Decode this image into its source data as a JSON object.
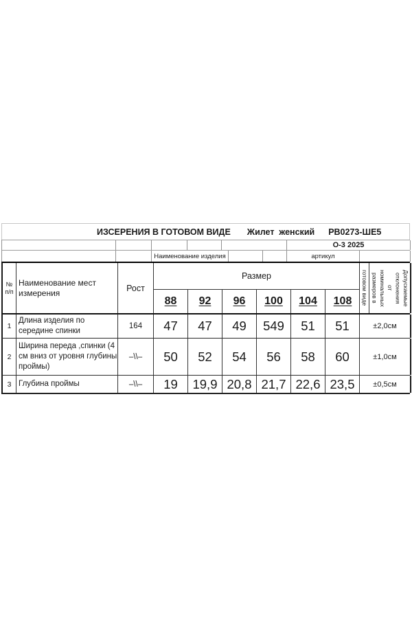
{
  "title": {
    "measurement": "ИЗСЕРЕНИЯ В ГОТОВОМ ВИДЕ",
    "product": "Жилет  женский",
    "article": "РВ0273-ШЕ5"
  },
  "meta1": {
    "season": "О-3 2025"
  },
  "meta2": {
    "product_label": "Наименование изделия",
    "article_label": "артикул"
  },
  "header": {
    "num_label": "№\nп/п",
    "name_label": "Наименование мест\nизмерения",
    "height_label": "Рост",
    "size_label": "Размер",
    "sizes": [
      "88",
      "92",
      "96",
      "100",
      "104",
      "108"
    ],
    "finished_label": "готовом виде",
    "tolerance_label": "Допускаемые\nотклонения\nот\nноминальных\nразмеров в"
  },
  "rows": [
    {
      "num": "1",
      "name": "Длина изделия по\nсередине спинки",
      "height": "164",
      "values": [
        "47",
        "47",
        "49",
        "549",
        "51",
        "51"
      ],
      "tolerance": "±2,0см"
    },
    {
      "num": "2",
      "name": "Ширина переда ,спинки (4\nсм вниз от уровня глубины\nпроймы)",
      "height": "–\\\\–",
      "values": [
        "50",
        "52",
        "54",
        "56",
        "58",
        "60"
      ],
      "tolerance": "±1,0см"
    },
    {
      "num": "3",
      "name": "Глубина проймы",
      "height": "–\\\\–",
      "values": [
        "19",
        "19,9",
        "20,8",
        "21,7",
        "22,6",
        "23,5"
      ],
      "tolerance": "±0,5см"
    }
  ]
}
